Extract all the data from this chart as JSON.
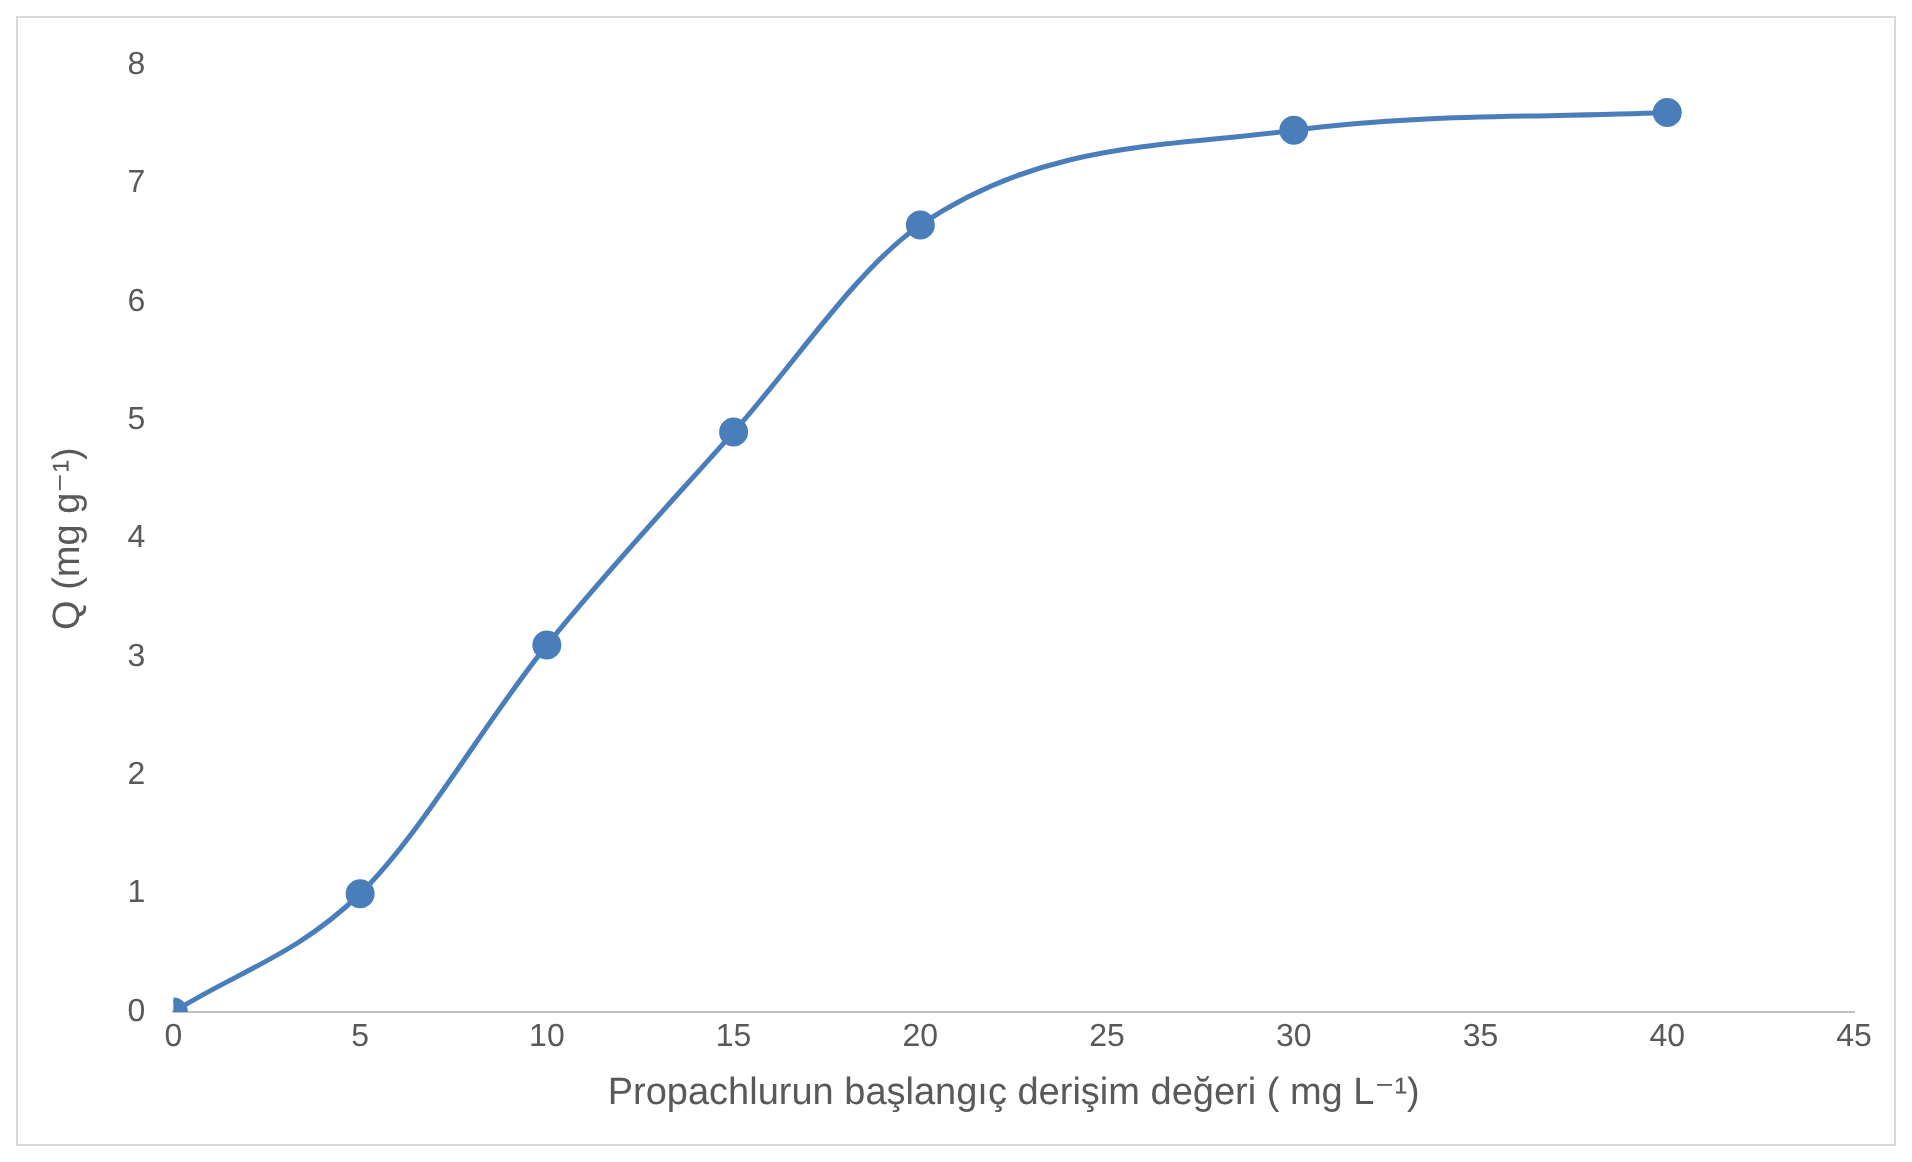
{
  "chart_data": {
    "type": "line",
    "xlabel": "Propachlurun başlangıç derişim değeri ( mg L⁻¹)",
    "ylabel": "Q (mg g⁻¹)",
    "x": [
      0,
      5,
      10,
      15,
      20,
      30,
      40
    ],
    "series": [
      {
        "color": "#4a7ebb",
        "values": [
          0,
          1.0,
          3.1,
          4.9,
          6.65,
          7.45,
          7.6
        ]
      }
    ],
    "xlim": [
      0,
      45
    ],
    "xticks": [
      0,
      5,
      10,
      15,
      20,
      25,
      30,
      35,
      40,
      45
    ],
    "ylim": [
      0,
      8
    ],
    "yticks": [
      0,
      1,
      2,
      3,
      4,
      5,
      6,
      7,
      8
    ],
    "grid": false,
    "legend": false,
    "marker": "circle",
    "line_style": "solid"
  }
}
